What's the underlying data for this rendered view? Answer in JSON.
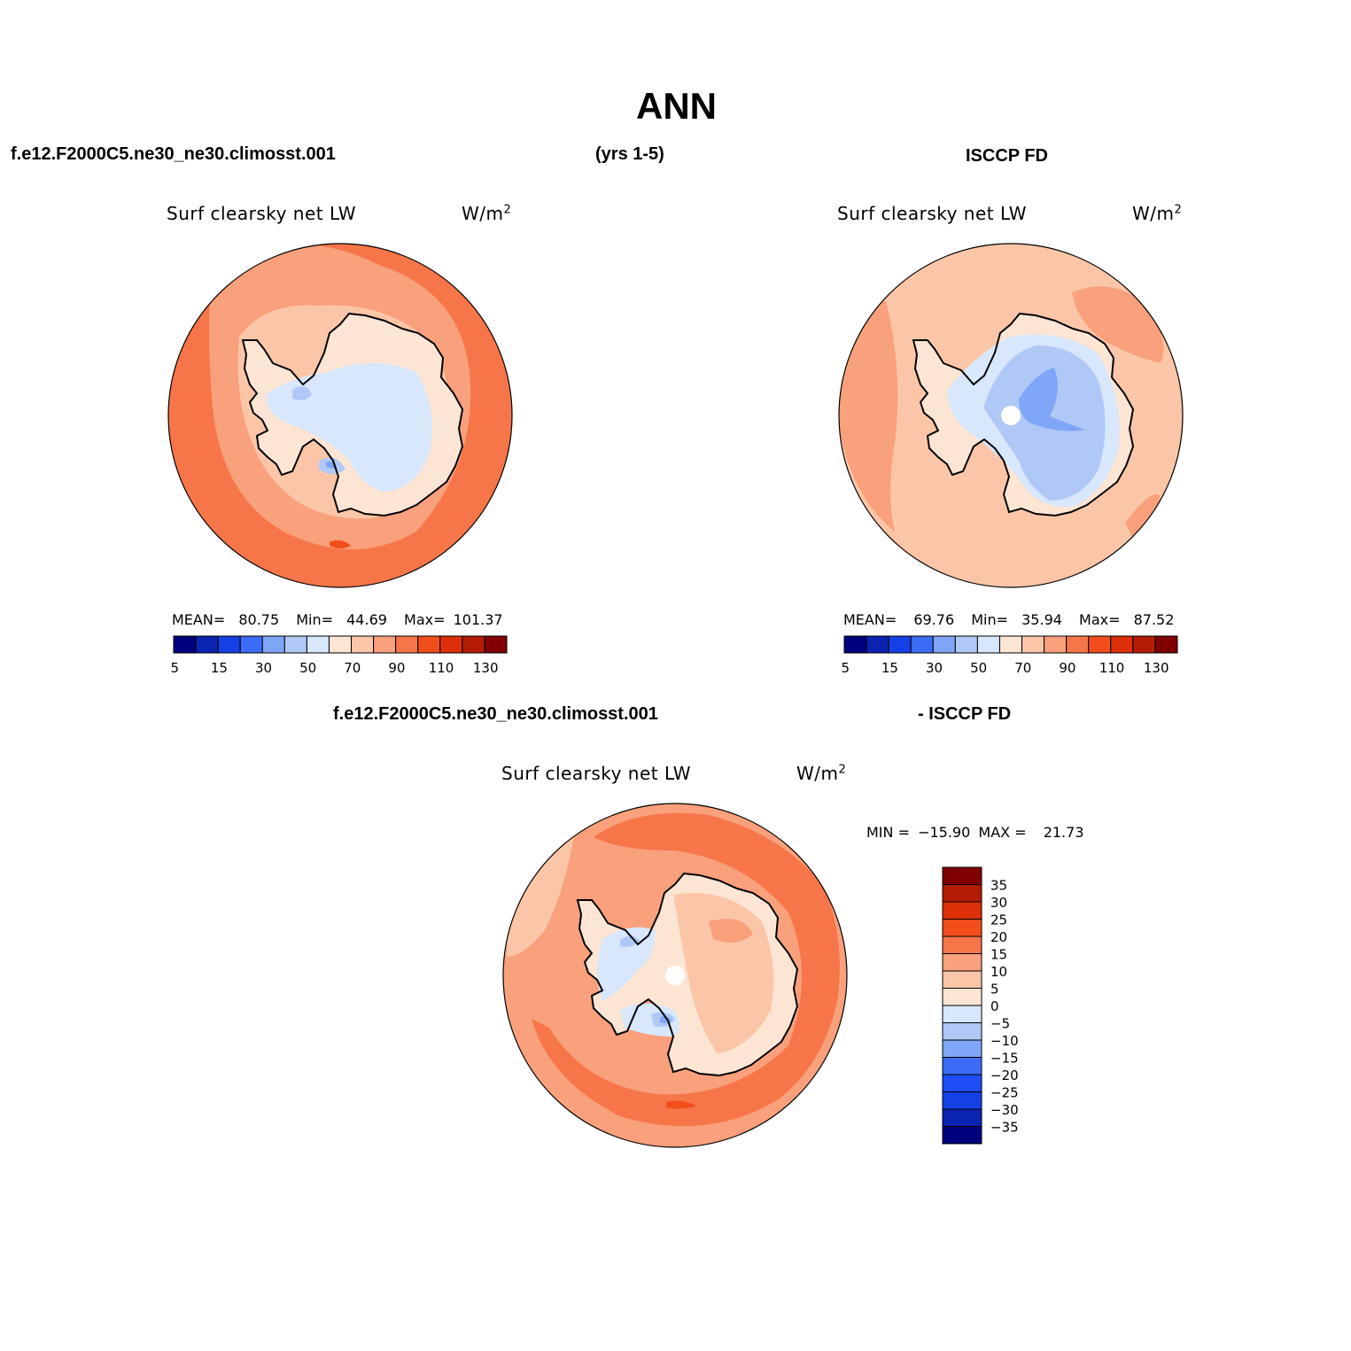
{
  "title": "ANN",
  "header": {
    "left": "f.e12.F2000C5.ne30_ne30.climosst.001",
    "center": "(yrs 1-5)",
    "right": "ISCCP FD"
  },
  "diff_header": {
    "left": "f.e12.F2000C5.ne30_ne30.climosst.001",
    "right": "- ISCCP FD"
  },
  "palette": {
    "abs_colors": [
      "#00007f",
      "#0a23b0",
      "#1540e6",
      "#3c6cf5",
      "#7fa6f7",
      "#b0c8f6",
      "#d8e7fb",
      "#fde5d4",
      "#fbc6a8",
      "#f9a07c",
      "#f6764a",
      "#f24e1c",
      "#dd3008",
      "#b51c04",
      "#800000"
    ],
    "diff_colors": [
      "#00007f",
      "#0a23b0",
      "#1540e6",
      "#1d4ef5",
      "#3c6cf5",
      "#7fa6f7",
      "#b0c8f6",
      "#d8e7fb",
      "#fde5d4",
      "#fbc6a8",
      "#f9a07c",
      "#f6764a",
      "#f24e1c",
      "#dd3008",
      "#b51c04",
      "#800000"
    ]
  },
  "chart_data": [
    {
      "type": "heatmap",
      "projection": "south-polar stereographic",
      "panel": "model",
      "title": "Surf clearsky net LW",
      "units": "W/m",
      "units_sup": "2",
      "stats": {
        "mean_label": "MEAN=",
        "mean": "80.75",
        "min_label": "Min=",
        "min": "44.69",
        "max_label": "Max=",
        "max": "101.37"
      },
      "colorbar_ticks": [
        "5",
        "15",
        "30",
        "50",
        "70",
        "90",
        "110",
        "130"
      ],
      "colorbar_levels": [
        5,
        10,
        15,
        20,
        30,
        40,
        50,
        60,
        70,
        80,
        90,
        100,
        110,
        120,
        130
      ]
    },
    {
      "type": "heatmap",
      "projection": "south-polar stereographic",
      "panel": "obs",
      "title": "Surf clearsky net LW",
      "units": "W/m",
      "units_sup": "2",
      "stats": {
        "mean_label": "MEAN=",
        "mean": "69.76",
        "min_label": "Min=",
        "min": "35.94",
        "max_label": "Max=",
        "max": "87.52"
      },
      "colorbar_ticks": [
        "5",
        "15",
        "30",
        "50",
        "70",
        "90",
        "110",
        "130"
      ],
      "colorbar_levels": [
        5,
        10,
        15,
        20,
        30,
        40,
        50,
        60,
        70,
        80,
        90,
        100,
        110,
        120,
        130
      ]
    },
    {
      "type": "heatmap",
      "projection": "south-polar stereographic",
      "panel": "difference",
      "title": "Surf clearsky net LW",
      "units": "W/m",
      "units_sup": "2",
      "stats": {
        "min_label": "MIN =",
        "min": "−15.90",
        "max_label": "MAX =",
        "max": "21.73"
      },
      "colorbar_ticks": [
        "35",
        "30",
        "25",
        "20",
        "15",
        "10",
        "5",
        "0",
        "−5",
        "−10",
        "−15",
        "−20",
        "−25",
        "−30",
        "−35"
      ]
    }
  ]
}
